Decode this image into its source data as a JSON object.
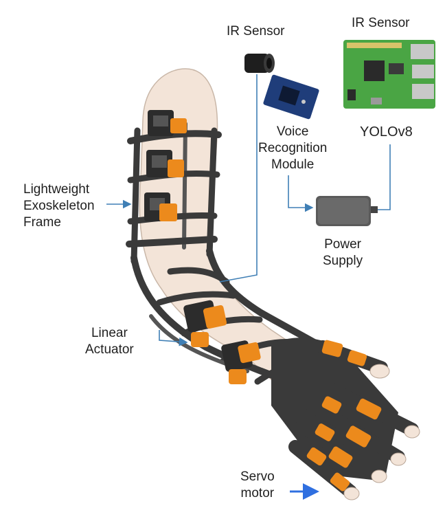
{
  "labels": {
    "ir_sensor_left": "IR Sensor",
    "ir_sensor_right": "IR Sensor",
    "voice_module": [
      "Voice",
      "Recognition",
      "Module"
    ],
    "yolo": "YOLOv8",
    "power_supply": [
      "Power",
      "Supply"
    ],
    "exoskeleton_frame": [
      "Lightweight",
      "Exoskeleton",
      "Frame"
    ],
    "linear_actuator": [
      "Linear",
      "Actuator"
    ],
    "servo_motor": [
      "Servo",
      "motor"
    ]
  },
  "colors": {
    "actuator_orange": "#ec8a1c",
    "frame_dark": "#3a3a3a",
    "skin": "#f3e4d8",
    "board_green": "#4aa544",
    "wire_blue": "#3f7fb5",
    "arrow_blue": "#2f6fe0"
  }
}
